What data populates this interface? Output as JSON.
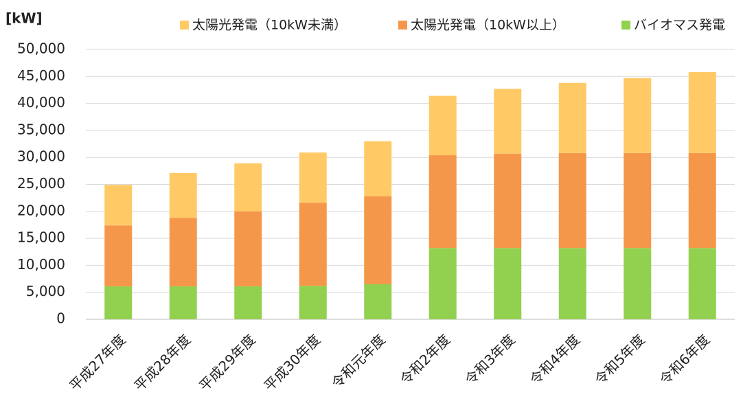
{
  "chart_data": {
    "type": "stacked_bar",
    "y_axis_label": "[kW]",
    "categories": [
      "平成27年度",
      "平成28年度",
      "平成29年度",
      "平成30年度",
      "令和元年度",
      "令和2年度",
      "令和3年度",
      "令和4年度",
      "令和5年度",
      "令和6年度"
    ],
    "series": [
      {
        "name": "太陽光発電（10kW未満）",
        "color": "#ffca66",
        "values": [
          7500,
          8300,
          8900,
          9300,
          10200,
          11000,
          12000,
          13000,
          13900,
          15000
        ]
      },
      {
        "name": "太陽光発電（10kW以上）",
        "color": "#f5974a",
        "values": [
          11300,
          12700,
          13900,
          15400,
          16300,
          17200,
          17500,
          17600,
          17600,
          17600
        ]
      },
      {
        "name": "バイオマス発電",
        "color": "#92d050",
        "values": [
          6100,
          6100,
          6100,
          6200,
          6500,
          13200,
          13200,
          13200,
          13200,
          13200
        ]
      }
    ],
    "ylim": [
      0,
      50000
    ],
    "yticks": [
      0,
      {
        "value": 5000,
        "label": "5,000"
      },
      {
        "value": 10000,
        "label": "10,000"
      },
      {
        "value": 15000,
        "label": "15,000"
      },
      {
        "value": 20000,
        "label": "20,000"
      },
      {
        "value": 25000,
        "label": "25,000"
      },
      {
        "value": 30000,
        "label": "30,000"
      },
      {
        "value": 35000,
        "label": "35,000"
      },
      {
        "value": 40000,
        "label": "40,000"
      },
      {
        "value": 45000,
        "label": "45,000"
      },
      {
        "value": 50000,
        "label": "50,000"
      }
    ],
    "grid": true,
    "legend": "top"
  }
}
